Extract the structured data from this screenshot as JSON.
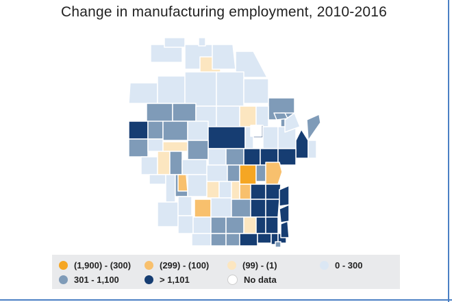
{
  "title": "Change in manufacturing employment, 2010-2016",
  "colors": {
    "bin1": "#f5a623",
    "bin2": "#f8c06d",
    "bin3": "#fce6c0",
    "bin4": "#dbe7f4",
    "bin5": "#7f9bb8",
    "bin6": "#163d72",
    "nodata": "#ffffff",
    "border": "#ffffff",
    "legend_bg": "#e9eaec"
  },
  "legend": [
    {
      "label": "(1,900) - (300)",
      "color_key": "bin1"
    },
    {
      "label": "(299) - (100)",
      "color_key": "bin2"
    },
    {
      "label": "(99) - (1)",
      "color_key": "bin3"
    },
    {
      "label": "0 - 300",
      "color_key": "bin4"
    },
    {
      "label": "301 - 1,100",
      "color_key": "bin5"
    },
    {
      "label": "> 1,101",
      "color_key": "bin6"
    },
    {
      "label": "No data",
      "color_key": "nodata"
    }
  ]
}
